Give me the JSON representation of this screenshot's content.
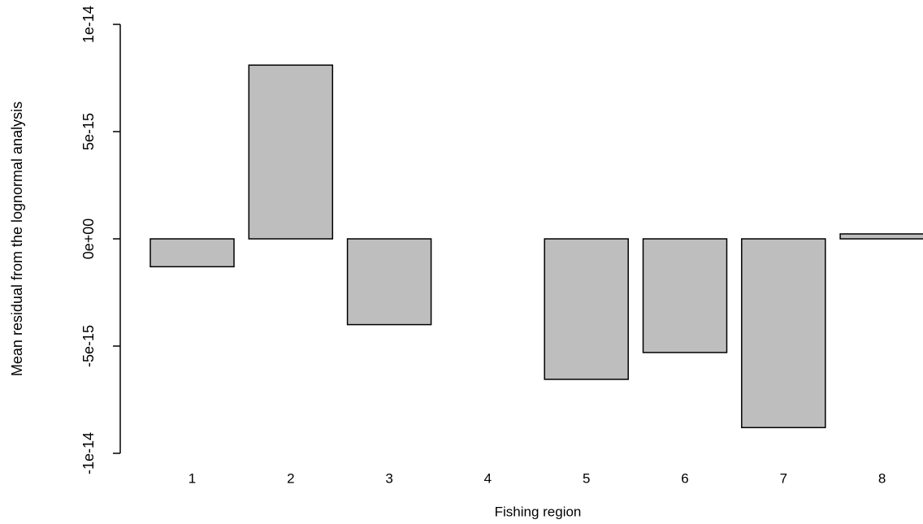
{
  "chart_data": {
    "type": "bar",
    "y_label": "Mean residual from the lognormal analysis",
    "x_label": "Fishing region",
    "categories": [
      "1",
      "2",
      "3",
      "4",
      "5",
      "6",
      "7",
      "8"
    ],
    "values": [
      -1.3e-15,
      8.1e-15,
      -4e-15,
      0,
      -6.55e-15,
      -5.3e-15,
      -8.8e-15,
      2.3e-16
    ],
    "color": "#bebebe",
    "ylim": [
      -1e-14,
      1e-14
    ],
    "yticks": [
      {
        "value": -1e-14,
        "label": "-1e-14"
      },
      {
        "value": -5e-15,
        "label": "-5e-15"
      },
      {
        "value": 0,
        "label": "0e+00"
      },
      {
        "value": 5e-15,
        "label": "5e-15"
      },
      {
        "value": 1e-14,
        "label": "1e-14"
      }
    ]
  }
}
